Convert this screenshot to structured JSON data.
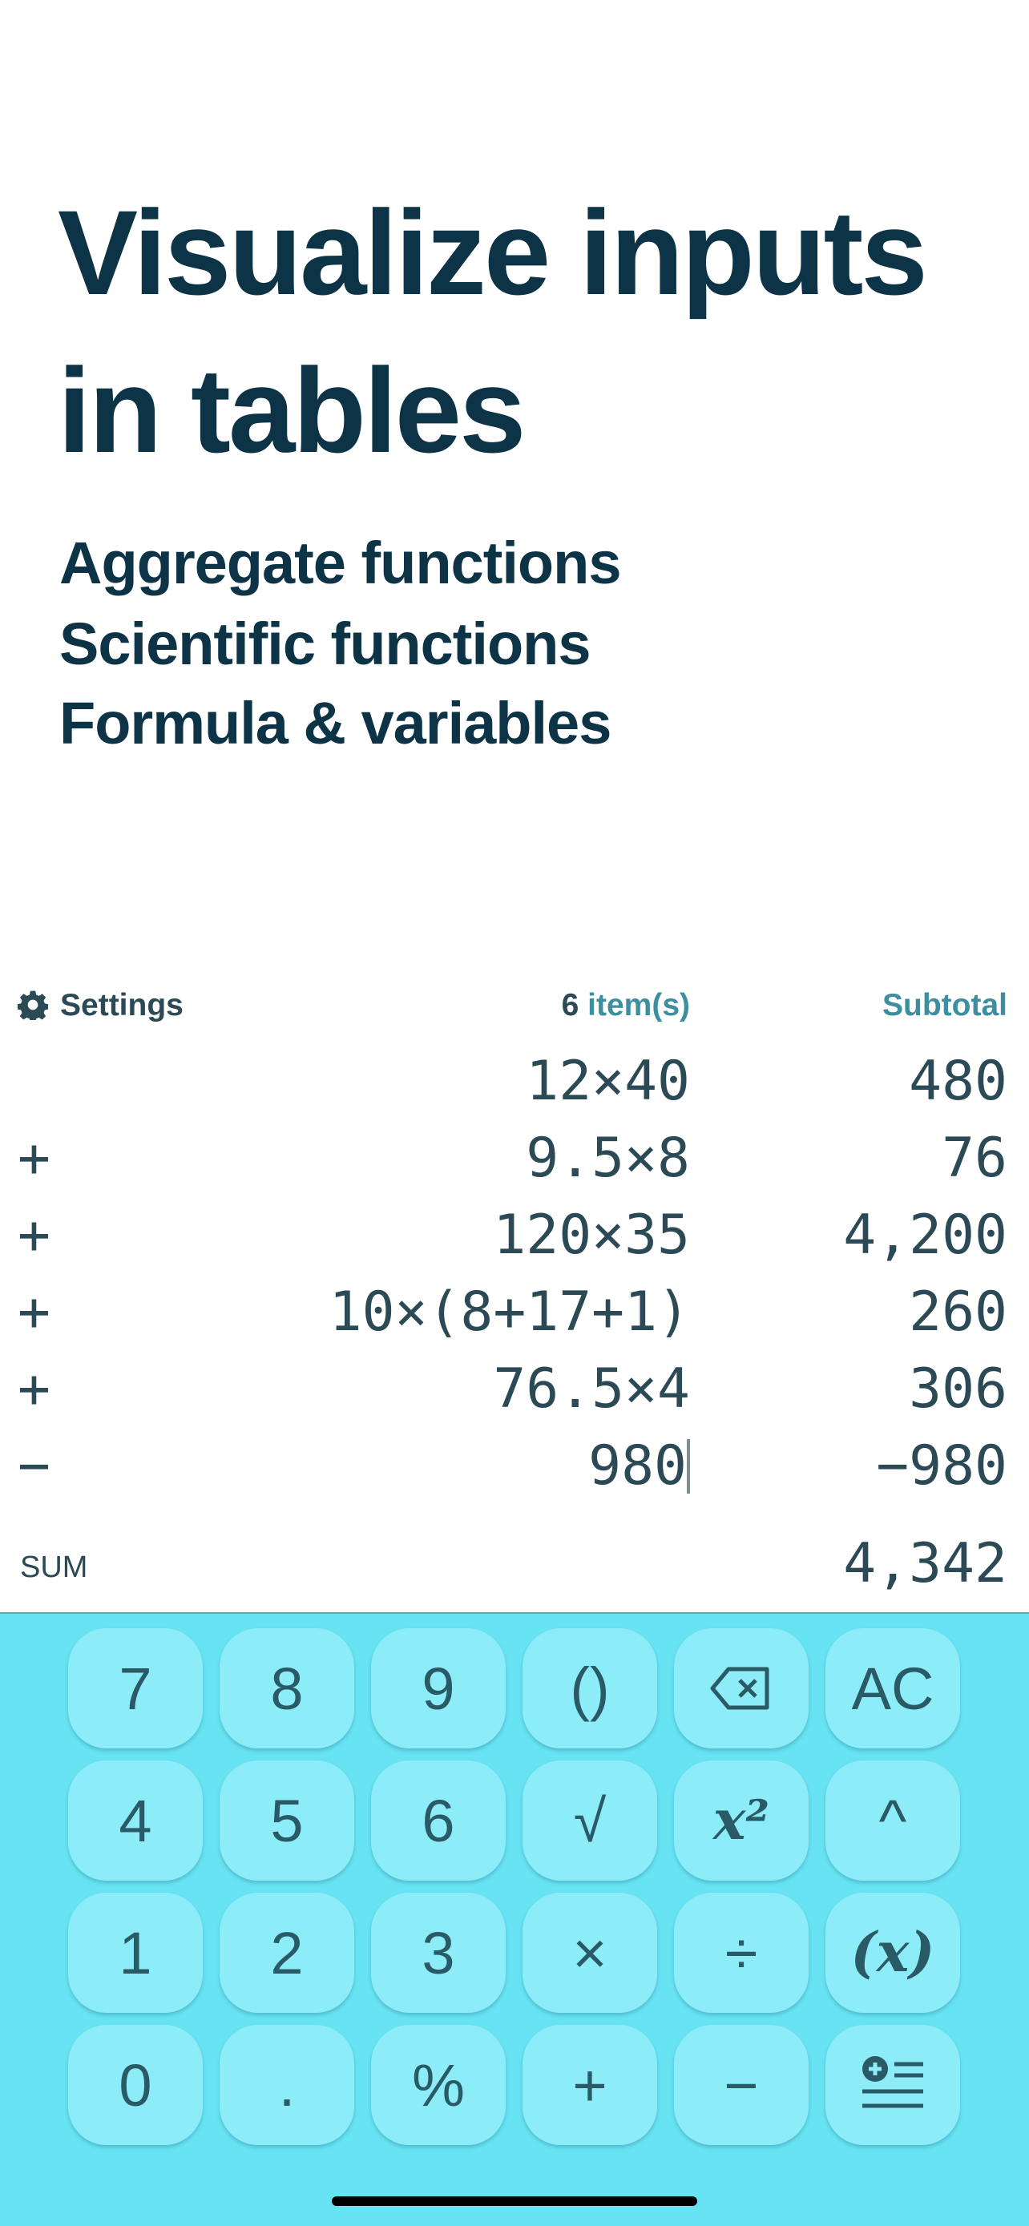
{
  "header": {
    "title_lines": [
      "Visualize inputs",
      "in tables"
    ],
    "features": [
      "Aggregate functions",
      "Scientific functions",
      "Formula & variables"
    ]
  },
  "table": {
    "settings": "Settings",
    "count": "6",
    "count_label": "item(s)",
    "subtotal_header": "Subtotal",
    "rows": [
      {
        "expression": "12×40",
        "subtotal": "480"
      },
      {
        "operator": "+",
        "expression": "9.5×8",
        "subtotal": "76"
      },
      {
        "operator": "+",
        "expression": "120×35",
        "subtotal": "4,200"
      },
      {
        "operator": "+",
        "expression": "10×(8+17+1)",
        "subtotal": "260"
      },
      {
        "operator": "+",
        "expression": "76.5×4",
        "subtotal": "306"
      },
      {
        "operator": "−",
        "expression": "980",
        "subtotal": "−980"
      }
    ],
    "sum_label": "SUM",
    "sum": "4,342"
  },
  "keypad": {
    "rows": [
      [
        "7",
        "8",
        "9",
        "()",
        null,
        "AC"
      ],
      [
        "4",
        "5",
        "6",
        "√",
        "x²",
        "^"
      ],
      [
        "1",
        "2",
        "3",
        "×",
        "÷",
        "(x)"
      ],
      [
        "0",
        ".",
        "%",
        "+",
        "−",
        null
      ]
    ]
  }
}
